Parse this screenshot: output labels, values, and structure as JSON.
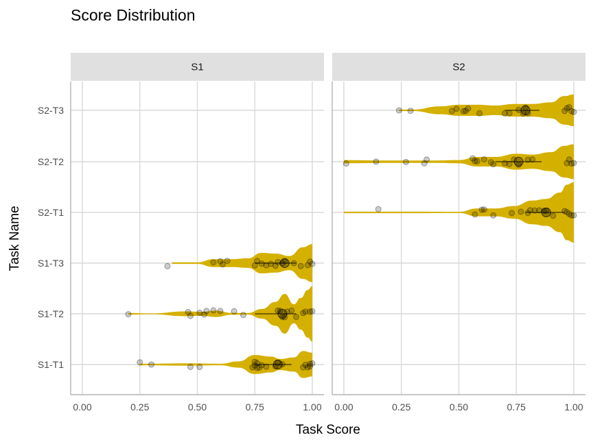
{
  "chart_data": {
    "type": "violin",
    "title": "Score Distribution",
    "xlabel": "Task Score",
    "ylabel": "Task Name",
    "xlim": [
      0,
      1
    ],
    "x_ticks": [
      "0.00",
      "0.25",
      "0.50",
      "0.75",
      "1.00"
    ],
    "categories": [
      "S1-T1",
      "S1-T2",
      "S1-T3",
      "S2-T1",
      "S2-T2",
      "S2-T3"
    ],
    "grid": true,
    "colors": {
      "violin_fill": "#d4b000",
      "point": "#000000",
      "strip_bg": "#e0e0e0",
      "grid": "#d9d9d9",
      "axis": "#b3b3b3"
    },
    "facets": [
      {
        "label": "S1",
        "series": [
          {
            "category": "S1-T1",
            "median": 0.85,
            "iqr": [
              0.75,
              0.91
            ],
            "points": [
              0.25,
              0.3,
              0.47,
              0.51,
              0.74,
              0.75,
              0.75,
              0.76,
              0.76,
              0.77,
              0.78,
              0.8,
              0.84,
              0.85,
              0.87,
              0.96,
              0.97,
              0.98,
              0.99,
              0.99,
              1.0
            ]
          },
          {
            "category": "S1-T2",
            "median": 0.87,
            "iqr": [
              0.75,
              0.93
            ],
            "points": [
              0.2,
              0.46,
              0.47,
              0.51,
              0.53,
              0.54,
              0.57,
              0.6,
              0.66,
              0.7,
              0.85,
              0.86,
              0.87,
              0.88,
              0.89,
              0.91,
              0.93,
              0.96,
              0.97,
              0.99,
              1.0
            ]
          },
          {
            "category": "S1-T3",
            "median": 0.88,
            "iqr": [
              0.75,
              0.93
            ],
            "points": [
              0.37,
              0.57,
              0.6,
              0.61,
              0.63,
              0.75,
              0.76,
              0.78,
              0.8,
              0.82,
              0.84,
              0.85,
              0.87,
              0.88,
              0.92,
              0.95,
              0.98,
              0.99,
              1.0
            ]
          }
        ]
      },
      {
        "label": "S2",
        "series": [
          {
            "category": "S2-T1",
            "median": 0.88,
            "iqr": [
              0.79,
              0.96
            ],
            "points": [
              0.15,
              0.57,
              0.6,
              0.61,
              0.65,
              0.73,
              0.77,
              0.8,
              0.81,
              0.83,
              0.85,
              0.87,
              0.88,
              0.91,
              0.96,
              0.97,
              0.98,
              0.99,
              1.0
            ]
          },
          {
            "category": "S2-T2",
            "median": 0.76,
            "iqr": [
              0.66,
              0.86
            ],
            "points": [
              0.01,
              0.14,
              0.27,
              0.35,
              0.36,
              0.56,
              0.57,
              0.58,
              0.61,
              0.64,
              0.65,
              0.7,
              0.72,
              0.74,
              0.76,
              0.8,
              0.82,
              0.97,
              0.98,
              0.99,
              1.0
            ]
          },
          {
            "category": "S2-T3",
            "median": 0.79,
            "iqr": [
              0.7,
              0.85
            ],
            "points": [
              0.24,
              0.29,
              0.47,
              0.49,
              0.52,
              0.53,
              0.54,
              0.59,
              0.7,
              0.72,
              0.76,
              0.78,
              0.79,
              0.8,
              0.96,
              0.97,
              0.98,
              0.99,
              1.0
            ]
          }
        ]
      }
    ],
    "violins": {
      "S1-T1": [
        [
          0.25,
          0.01
        ],
        [
          0.45,
          0.015
        ],
        [
          0.6,
          0.01
        ],
        [
          0.68,
          0.04
        ],
        [
          0.75,
          0.12
        ],
        [
          0.82,
          0.1
        ],
        [
          0.86,
          0.07
        ],
        [
          0.92,
          0.09
        ],
        [
          0.96,
          0.17
        ],
        [
          1.0,
          0.15
        ]
      ],
      "S1-T2": [
        [
          0.2,
          0.01
        ],
        [
          0.3,
          0.005
        ],
        [
          0.45,
          0.03
        ],
        [
          0.52,
          0.025
        ],
        [
          0.58,
          0.04
        ],
        [
          0.65,
          0.012
        ],
        [
          0.72,
          0.01
        ],
        [
          0.78,
          0.06
        ],
        [
          0.84,
          0.15
        ],
        [
          0.88,
          0.25
        ],
        [
          0.92,
          0.12
        ],
        [
          0.95,
          0.2
        ],
        [
          0.98,
          0.3
        ],
        [
          1.0,
          0.35
        ]
      ],
      "S1-T3": [
        [
          0.39,
          0.01
        ],
        [
          0.5,
          0.01
        ],
        [
          0.57,
          0.05
        ],
        [
          0.65,
          0.05
        ],
        [
          0.72,
          0.06
        ],
        [
          0.78,
          0.13
        ],
        [
          0.84,
          0.12
        ],
        [
          0.9,
          0.09
        ],
        [
          0.96,
          0.2
        ],
        [
          1.0,
          0.24
        ]
      ],
      "S2-T1": [
        [
          0.0,
          0.01
        ],
        [
          0.3,
          0.01
        ],
        [
          0.5,
          0.008
        ],
        [
          0.58,
          0.05
        ],
        [
          0.66,
          0.05
        ],
        [
          0.74,
          0.08
        ],
        [
          0.82,
          0.15
        ],
        [
          0.88,
          0.17
        ],
        [
          0.94,
          0.25
        ],
        [
          0.97,
          0.35
        ],
        [
          1.0,
          0.38
        ]
      ],
      "S2-T2": [
        [
          0.0,
          0.02
        ],
        [
          0.2,
          0.015
        ],
        [
          0.4,
          0.015
        ],
        [
          0.5,
          0.02
        ],
        [
          0.58,
          0.06
        ],
        [
          0.66,
          0.06
        ],
        [
          0.75,
          0.1
        ],
        [
          0.82,
          0.09
        ],
        [
          0.9,
          0.12
        ],
        [
          0.96,
          0.2
        ],
        [
          1.0,
          0.22
        ]
      ],
      "S2-T3": [
        [
          0.24,
          0.01
        ],
        [
          0.3,
          0.01
        ],
        [
          0.42,
          0.05
        ],
        [
          0.5,
          0.07
        ],
        [
          0.58,
          0.07
        ],
        [
          0.66,
          0.06
        ],
        [
          0.74,
          0.08
        ],
        [
          0.82,
          0.08
        ],
        [
          0.9,
          0.1
        ],
        [
          0.96,
          0.18
        ],
        [
          1.0,
          0.2
        ]
      ]
    }
  }
}
